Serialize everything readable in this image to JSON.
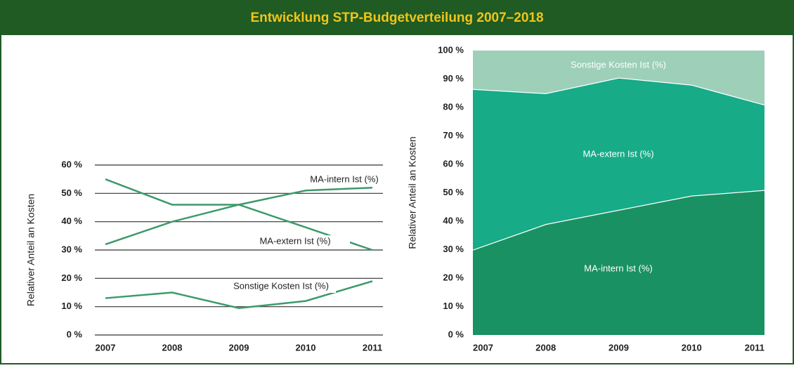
{
  "header": {
    "title": "Entwicklung STP-Budgetverteilung 2007–2018"
  },
  "chart_data": [
    {
      "type": "line",
      "ylabel": "Relativer Anteil an Kosten",
      "categories": [
        "2007",
        "2008",
        "2009",
        "2010",
        "2011"
      ],
      "series": [
        {
          "name": "MA-intern Ist (%)",
          "color": "#3d9a6a",
          "values": [
            32,
            40,
            46,
            51,
            52
          ]
        },
        {
          "name": "MA-extern Ist (%)",
          "color": "#3d9a6a",
          "values": [
            55,
            46,
            46,
            38,
            30
          ]
        },
        {
          "name": "Sonstige Kosten Ist (%)",
          "color": "#3d9a6a",
          "values": [
            13,
            15,
            9.5,
            12,
            19
          ]
        }
      ],
      "ylim": [
        0,
        60
      ],
      "yticks": [
        {
          "value": 0,
          "label": "0 %"
        },
        {
          "value": 10,
          "label": "10 %"
        },
        {
          "value": 20,
          "label": "20 %"
        },
        {
          "value": 30,
          "label": "30 %"
        },
        {
          "value": 40,
          "label": "40 %"
        },
        {
          "value": 50,
          "label": "50 %"
        },
        {
          "value": 60,
          "label": "60 %"
        }
      ],
      "grid": true
    },
    {
      "type": "stacked_area",
      "ylabel": "Relativer Anteil an Kosten",
      "categories": [
        "2007",
        "2008",
        "2009",
        "2010",
        "2011"
      ],
      "series": [
        {
          "name": "MA-intern Ist (%)",
          "color": "#1a9163",
          "values": [
            30,
            39,
            44,
            49,
            51
          ]
        },
        {
          "name": "MA-extern Ist (%)",
          "color": "#17ab88",
          "values": [
            56.5,
            46,
            46.5,
            39,
            30
          ]
        },
        {
          "name": "Sonstige Kosten Ist (%)",
          "color": "#9dcfb9",
          "values": [
            13.5,
            15,
            9.5,
            12,
            19
          ]
        }
      ],
      "ylim": [
        0,
        100
      ],
      "yticks": [
        {
          "value": 0,
          "label": "0 %"
        },
        {
          "value": 10,
          "label": "10 %"
        },
        {
          "value": 20,
          "label": "20 %"
        },
        {
          "value": 30,
          "label": "30 %"
        },
        {
          "value": 40,
          "label": "40 %"
        },
        {
          "value": 50,
          "label": "50 %"
        },
        {
          "value": 60,
          "label": "60 %"
        },
        {
          "value": 70,
          "label": "70 %"
        },
        {
          "value": 80,
          "label": "80 %"
        },
        {
          "value": 90,
          "label": "90 %"
        },
        {
          "value": 100,
          "label": "100 %"
        }
      ]
    }
  ]
}
